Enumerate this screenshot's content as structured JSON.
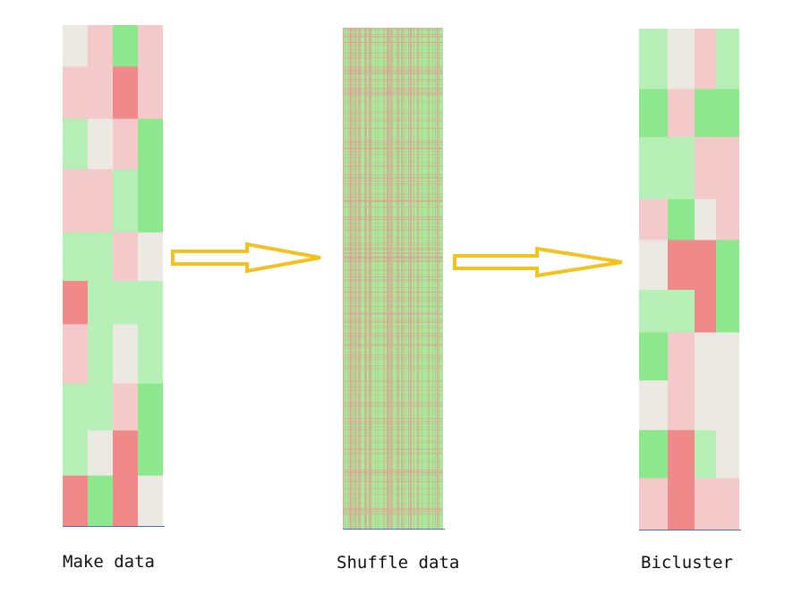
{
  "steps": [
    {
      "caption": "Make data"
    },
    {
      "caption": "Shuffle data"
    },
    {
      "caption": "Bicluster"
    }
  ],
  "colors": {
    "green_strong": "#8de88d",
    "green_light": "#b6f0b6",
    "pink_light": "#f3c9c9",
    "red_strong": "#f08a8a",
    "neutral": "#ece9e2",
    "arrow": "#f2c320",
    "shuffle_base": "#a6ea9a",
    "shuffle_line": "#e0a093",
    "baseline": "#4a72b8"
  },
  "panels": {
    "make": {
      "col_widths": [
        1,
        1,
        1,
        1
      ],
      "row_heights": [
        46,
        58,
        56,
        70,
        54,
        48,
        66,
        52,
        50,
        56
      ],
      "cells": [
        [
          "neutral",
          "pink_light",
          "green_strong",
          "pink_light"
        ],
        [
          "pink_light",
          "pink_light",
          "red_strong",
          "pink_light"
        ],
        [
          "green_light",
          "neutral",
          "pink_light",
          "green_strong"
        ],
        [
          "pink_light",
          "pink_light",
          "green_light",
          "green_strong"
        ],
        [
          "green_light",
          "green_light",
          "pink_light",
          "neutral"
        ],
        [
          "red_strong",
          "green_light",
          "green_light",
          "green_light"
        ],
        [
          "pink_light",
          "green_light",
          "neutral",
          "green_light"
        ],
        [
          "green_light",
          "green_light",
          "pink_light",
          "green_strong"
        ],
        [
          "green_light",
          "neutral",
          "red_strong",
          "green_strong"
        ],
        [
          "red_strong",
          "green_strong",
          "red_strong",
          "neutral"
        ]
      ]
    },
    "bicluster": {
      "col_widths": [
        32,
        30,
        24,
        26
      ],
      "row_heights": [
        68,
        54,
        70,
        46,
        56,
        48,
        54,
        56,
        54,
        58
      ],
      "cells": [
        [
          "green_light",
          "neutral",
          "pink_light",
          "green_light"
        ],
        [
          "green_strong",
          "pink_light",
          "green_strong",
          "green_strong"
        ],
        [
          "green_light",
          "green_light",
          "pink_light",
          "pink_light"
        ],
        [
          "pink_light",
          "green_strong",
          "neutral",
          "pink_light"
        ],
        [
          "neutral",
          "red_strong",
          "red_strong",
          "green_strong"
        ],
        [
          "green_light",
          "green_light",
          "red_strong",
          "green_strong"
        ],
        [
          "green_strong",
          "pink_light",
          "neutral",
          "neutral"
        ],
        [
          "neutral",
          "pink_light",
          "neutral",
          "neutral"
        ],
        [
          "green_strong",
          "red_strong",
          "green_light",
          "neutral"
        ],
        [
          "pink_light",
          "red_strong",
          "pink_light",
          "pink_light"
        ]
      ]
    }
  }
}
